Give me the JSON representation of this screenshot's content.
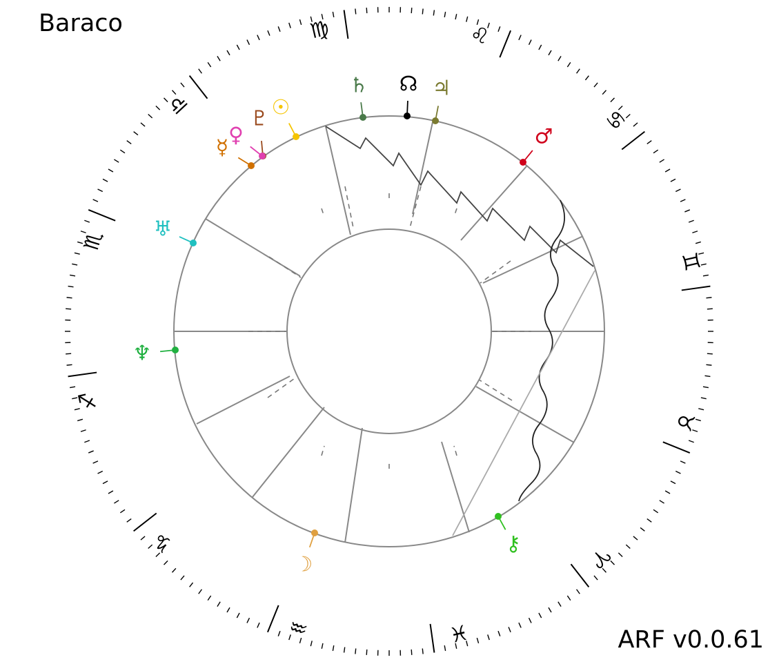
{
  "chart_title": "Baraco",
  "version_label": "ARF v0.0.61",
  "zodiac": [
    {
      "name": "aries",
      "glyph": "♈",
      "color": "#000000"
    },
    {
      "name": "taurus",
      "glyph": "♉",
      "color": "#000000"
    },
    {
      "name": "gemini",
      "glyph": "♊",
      "color": "#000000"
    },
    {
      "name": "cancer",
      "glyph": "♋",
      "color": "#000000"
    },
    {
      "name": "leo",
      "glyph": "♌",
      "color": "#000000"
    },
    {
      "name": "virgo",
      "glyph": "♍",
      "color": "#000000"
    },
    {
      "name": "libra",
      "glyph": "♎",
      "color": "#000000"
    },
    {
      "name": "scorpio",
      "glyph": "♏",
      "color": "#000000"
    },
    {
      "name": "sagittarius",
      "glyph": "♐",
      "color": "#000000"
    },
    {
      "name": "capricorn",
      "glyph": "♑",
      "color": "#000000"
    },
    {
      "name": "aquarius",
      "glyph": "♒",
      "color": "#000000"
    },
    {
      "name": "pisces",
      "glyph": "♓",
      "color": "#000000"
    }
  ],
  "planets": [
    {
      "name": "saturn",
      "glyph": "♄",
      "color": "#4a7a4a"
    },
    {
      "name": "north-node",
      "glyph": "☊",
      "color": "#000000"
    },
    {
      "name": "jupiter",
      "glyph": "♃",
      "color": "#7a7a30"
    },
    {
      "name": "mars",
      "glyph": "♂",
      "color": "#d0021b"
    },
    {
      "name": "sun",
      "glyph": "☉",
      "color": "#f5c400"
    },
    {
      "name": "pluto",
      "glyph": "♇",
      "color": "#9a4a1e"
    },
    {
      "name": "venus",
      "glyph": "♀",
      "color": "#e040b0"
    },
    {
      "name": "mercury",
      "glyph": "☿",
      "color": "#d07000"
    },
    {
      "name": "uranus",
      "glyph": "♅",
      "color": "#20c0c0"
    },
    {
      "name": "neptune",
      "glyph": "♆",
      "color": "#20b040"
    },
    {
      "name": "moon",
      "glyph": "☽",
      "color": "#e0a040"
    },
    {
      "name": "chiron",
      "glyph": "⚷",
      "color": "#30c020"
    }
  ]
}
